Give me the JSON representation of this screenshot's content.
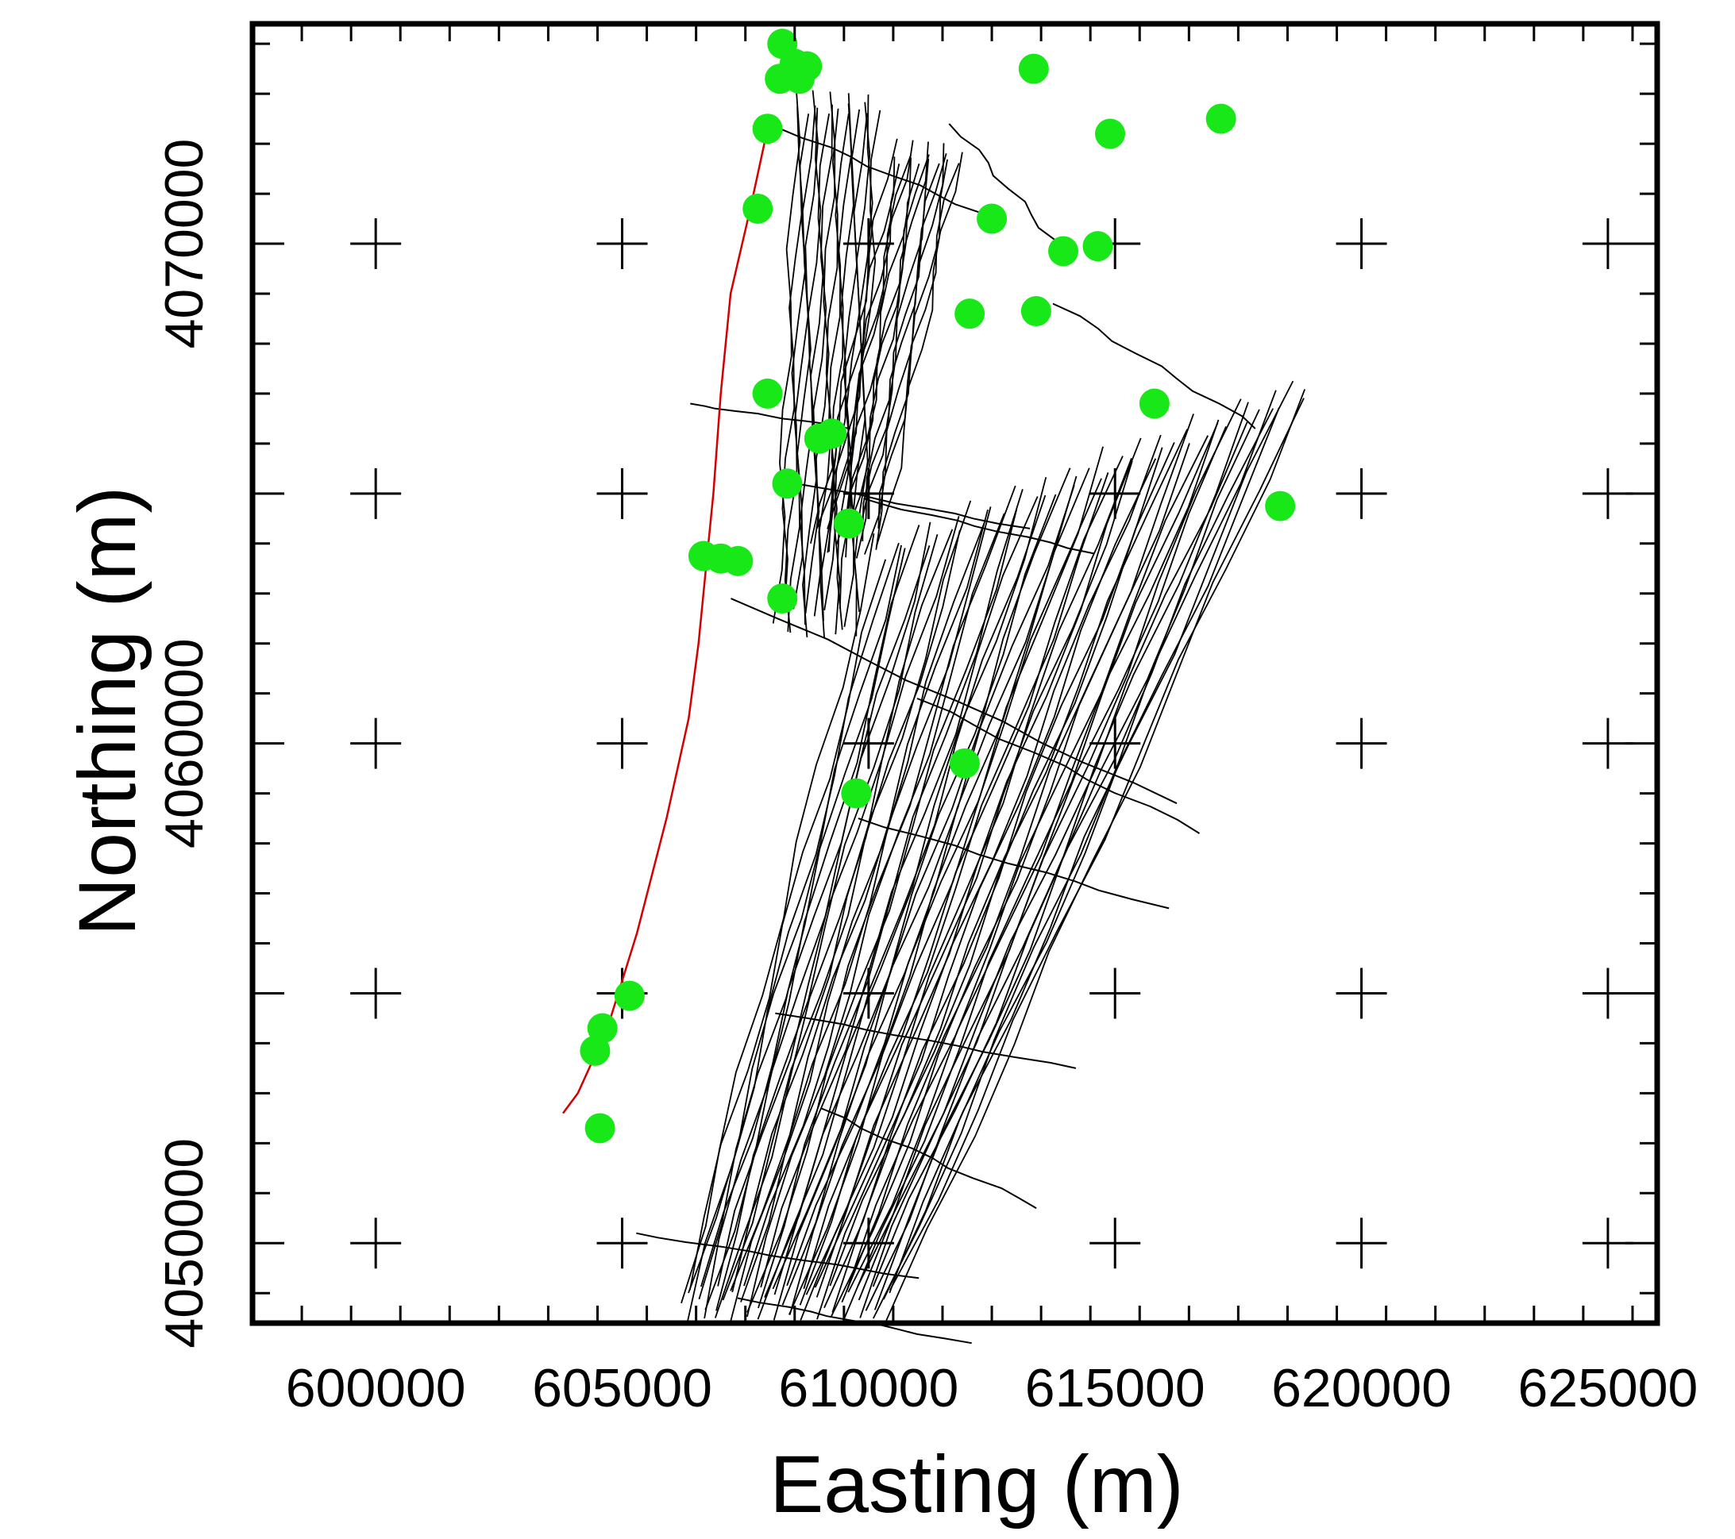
{
  "chart_data": {
    "type": "scatter",
    "title": "",
    "xlabel": "Easting (m)",
    "ylabel": "Northing (m)",
    "xlim": [
      597500,
      626000
    ],
    "ylim": [
      4048400,
      4074400
    ],
    "x_ticks": [
      600000,
      605000,
      610000,
      615000,
      620000,
      625000
    ],
    "y_ticks": [
      4050000,
      4060000,
      4070000
    ],
    "x_tick_labels": [
      "600000",
      "605000",
      "610000",
      "615000",
      "620000",
      "625000"
    ],
    "y_tick_labels": [
      "4050000",
      "4060000",
      "4070000"
    ],
    "grid": "cross markers every 5000 m",
    "colors": {
      "points": "#18e818",
      "survey_lines": "#000000",
      "coastline": "#d40000",
      "frame": "#000000"
    },
    "series": [
      {
        "type": "scatter",
        "marker": "filled-circle",
        "points": [
          [
            608250,
            4074000
          ],
          [
            608500,
            4073600
          ],
          [
            608750,
            4073550
          ],
          [
            608200,
            4073300
          ],
          [
            608600,
            4073300
          ],
          [
            607950,
            4072300
          ],
          [
            607750,
            4070700
          ],
          [
            612500,
            4070500
          ],
          [
            613350,
            4073500
          ],
          [
            614900,
            4072200
          ],
          [
            617150,
            4072500
          ],
          [
            613950,
            4069850
          ],
          [
            614650,
            4069950
          ],
          [
            612050,
            4068600
          ],
          [
            613400,
            4068650
          ],
          [
            607950,
            4067000
          ],
          [
            609000,
            4066100
          ],
          [
            609250,
            4066200
          ],
          [
            615800,
            4066800
          ],
          [
            608350,
            4065200
          ],
          [
            609600,
            4064400
          ],
          [
            618350,
            4064750
          ],
          [
            606650,
            4063750
          ],
          [
            607000,
            4063700
          ],
          [
            607350,
            4063650
          ],
          [
            608250,
            4062900
          ],
          [
            611950,
            4059600
          ],
          [
            609750,
            4059000
          ],
          [
            605150,
            4054950
          ],
          [
            604600,
            4054300
          ],
          [
            604450,
            4053850
          ],
          [
            604550,
            4052300
          ]
        ]
      },
      {
        "type": "line",
        "role": "coastline",
        "points": [
          [
            607950,
            4072300
          ],
          [
            607600,
            4070700
          ],
          [
            607200,
            4069000
          ],
          [
            607000,
            4067000
          ],
          [
            606850,
            4065000
          ],
          [
            606700,
            4063500
          ],
          [
            606550,
            4062000
          ],
          [
            606350,
            4060500
          ],
          [
            605900,
            4058500
          ],
          [
            605300,
            4056200
          ],
          [
            604700,
            4054300
          ],
          [
            604100,
            4053000
          ],
          [
            603800,
            4052600
          ]
        ]
      },
      {
        "type": "line",
        "role": "survey-lines",
        "north_blocks": [
          {
            "south": [
              608150,
              4062400
            ],
            "north": [
              608550,
              4073100
            ],
            "dx_per_line": [
              -2,
              2
            ]
          },
          {
            "south": [
              608900,
              4064000
            ],
            "north": [
              610500,
              4072100
            ],
            "dx_per_line": [
              -2,
              2
            ]
          }
        ],
        "main_block": {
          "corners": {
            "south_west": [
              606200,
              4048800
            ],
            "south_east": [
              610500,
              4048800
            ],
            "north_west": [
              610200,
              4064200
            ],
            "north_east": [
              618900,
              4067500
            ]
          },
          "line_count": 56
        },
        "tie_lines": [
          [
            [
              607800,
              4072500
            ],
            [
              612300,
              4070600
            ]
          ],
          [
            [
              611700,
              4072400
            ],
            [
              614000,
              4069800
            ]
          ],
          [
            [
              613800,
              4068800
            ],
            [
              617900,
              4066300
            ]
          ],
          [
            [
              606300,
              4066800
            ],
            [
              609700,
              4066300
            ]
          ],
          [
            [
              608100,
              4065300
            ],
            [
              613200,
              4064300
            ]
          ],
          [
            [
              607300,
              4062900
            ],
            [
              616200,
              4058800
            ]
          ],
          [
            [
              611000,
              4060900
            ],
            [
              616800,
              4058200
            ]
          ],
          [
            [
              609800,
              4064900
            ],
            [
              614600,
              4063800
            ]
          ],
          [
            [
              609800,
              4058500
            ],
            [
              616000,
              4056700
            ]
          ],
          [
            [
              608200,
              4054600
            ],
            [
              614200,
              4053500
            ]
          ],
          [
            [
              609000,
              4052700
            ],
            [
              613500,
              4050700
            ]
          ],
          [
            [
              605200,
              4050200
            ],
            [
              611000,
              4049300
            ]
          ],
          [
            [
              607400,
              4048900
            ],
            [
              612000,
              4048000
            ]
          ]
        ]
      }
    ]
  }
}
